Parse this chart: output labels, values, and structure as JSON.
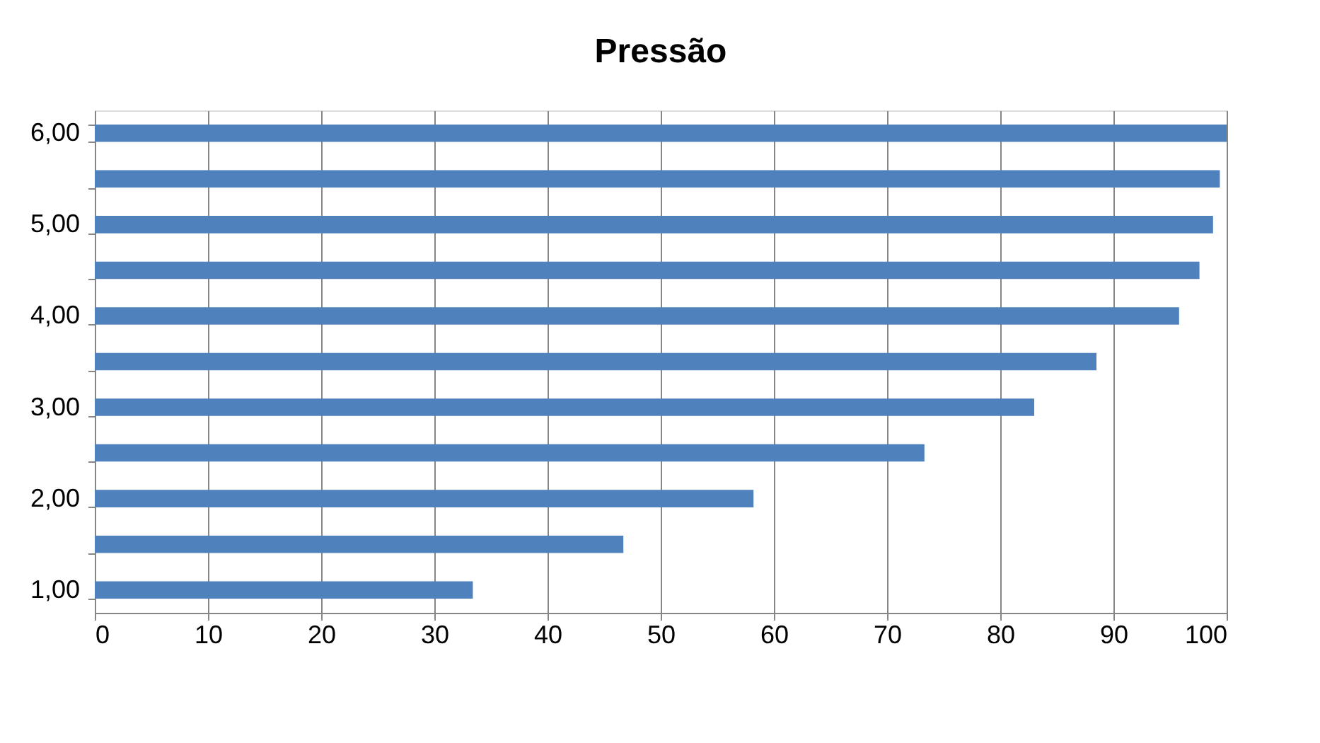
{
  "chart_data": {
    "type": "bar",
    "orientation": "horizontal",
    "title": "Pressão",
    "categories": [
      "6,00",
      null,
      "5,00",
      null,
      "4,00",
      null,
      "3,00",
      null,
      "2,00",
      null,
      "1,00"
    ],
    "values": [
      100,
      99.4,
      98.8,
      97.6,
      95.8,
      88.5,
      83,
      73.3,
      58.2,
      46.7,
      33.4
    ],
    "color": "#4f81bd",
    "xlim": [
      0,
      100
    ],
    "xticks": [
      0,
      10,
      20,
      30,
      40,
      50,
      60,
      70,
      80,
      90,
      100
    ],
    "grid": "x"
  }
}
